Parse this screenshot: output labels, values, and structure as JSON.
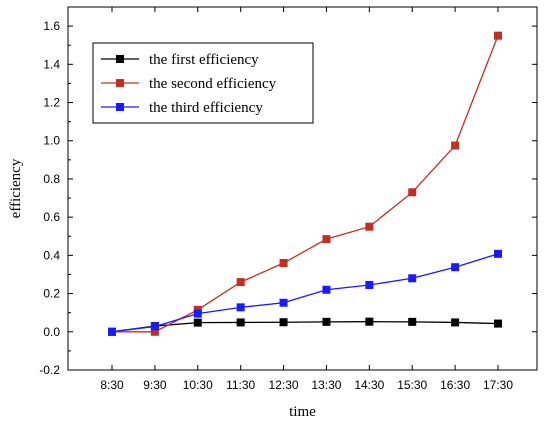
{
  "chart_data": {
    "type": "line",
    "title": "",
    "xlabel": "time",
    "ylabel": "efficiency",
    "categories": [
      "8:30",
      "9:30",
      "10:30",
      "11:30",
      "12:30",
      "13:30",
      "14:30",
      "15:30",
      "16:30",
      "17:30"
    ],
    "ylim": [
      -0.2,
      1.7
    ],
    "yticks": [
      "-0.2",
      "0.0",
      "0.2",
      "0.4",
      "0.6",
      "0.8",
      "1.0",
      "1.2",
      "1.4",
      "1.6"
    ],
    "grid": false,
    "legend": "top-left",
    "series": [
      {
        "name": "the first efficiency",
        "color": "#000000",
        "marker": "square",
        "values": [
          0.0,
          0.03,
          0.048,
          0.049,
          0.05,
          0.052,
          0.053,
          0.052,
          0.049,
          0.043
        ]
      },
      {
        "name": "the second efficiency",
        "color": "#c03020",
        "marker": "square",
        "values": [
          0.0,
          0.0,
          0.115,
          0.26,
          0.36,
          0.485,
          0.55,
          0.73,
          0.975,
          1.55
        ]
      },
      {
        "name": "the third efficiency",
        "color": "#1a1aff",
        "marker": "square",
        "values": [
          0.0,
          0.028,
          0.095,
          0.128,
          0.152,
          0.22,
          0.245,
          0.28,
          0.338,
          0.408
        ]
      }
    ]
  }
}
